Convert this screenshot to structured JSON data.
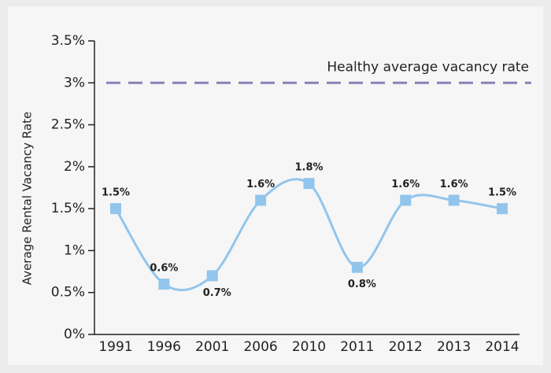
{
  "chart_data": {
    "type": "line",
    "y_label": "Average Rental Vacancy Rate",
    "categories": [
      "1991",
      "1996",
      "2001",
      "2006",
      "2010",
      "2011",
      "2012",
      "2013",
      "2014"
    ],
    "series": [
      {
        "name": null,
        "color": "#92c5ec",
        "values": [
          1.5,
          0.6,
          0.7,
          1.6,
          1.8,
          0.8,
          1.6,
          1.6,
          1.5
        ],
        "value_labels": [
          "1.5%",
          "0.6%",
          "0.7%",
          "1.6%",
          "1.8%",
          "0.8%",
          "1.6%",
          "1.6%",
          "1.5%"
        ]
      }
    ],
    "ylim": [
      0,
      3.5
    ],
    "yticks": [
      {
        "value": 0,
        "label": "0%"
      },
      {
        "value": 0.5,
        "label": "0.5%"
      },
      {
        "value": 1,
        "label": "1%"
      },
      {
        "value": 1.5,
        "label": "1.5%"
      },
      {
        "value": 2,
        "label": "2%"
      },
      {
        "value": 2.5,
        "label": "2.5%"
      },
      {
        "value": 3,
        "label": "3%"
      },
      {
        "value": 3.5,
        "label": "3.5%"
      }
    ],
    "reference_line": {
      "value": 3,
      "label": "Healthy average vacancy rate",
      "color": "#8a80b8"
    }
  }
}
